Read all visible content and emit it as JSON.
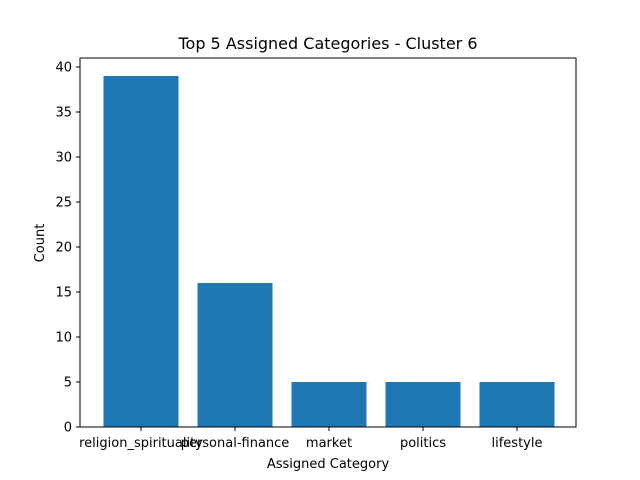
{
  "chart_data": {
    "type": "bar",
    "title": "Top 5 Assigned Categories - Cluster 6",
    "xlabel": "Assigned Category",
    "ylabel": "Count",
    "categories": [
      "religion_spirituality",
      "personal-finance",
      "market",
      "politics",
      "lifestyle"
    ],
    "values": [
      39,
      16,
      5,
      5,
      5
    ],
    "ylim": [
      0,
      41
    ],
    "yticks": [
      0,
      5,
      10,
      15,
      20,
      25,
      30,
      35,
      40
    ],
    "bar_color": "#1f77b4",
    "grid": false,
    "legend": "none"
  }
}
